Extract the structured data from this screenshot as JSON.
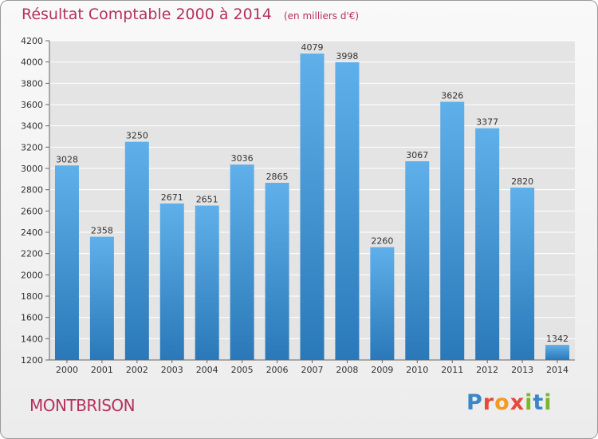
{
  "header": {
    "title": "Résultat Comptable 2000 à 2014",
    "unit": "(en milliers d'€)"
  },
  "footer": {
    "city": "MONTBRISON",
    "logo": "Proxiti"
  },
  "colors": {
    "title": "#b5305e",
    "bar_top": "#5fb0ea",
    "bar_bottom": "#2a78b8",
    "grid": "#ffffff",
    "plot_bg": "#e4e4e4"
  },
  "chart_data": {
    "type": "bar",
    "title": "Résultat Comptable 2000 à 2014",
    "subtitle": "(en milliers d'€)",
    "categories": [
      "2000",
      "2001",
      "2002",
      "2003",
      "2004",
      "2005",
      "2006",
      "2007",
      "2008",
      "2009",
      "2010",
      "2011",
      "2012",
      "2013",
      "2014"
    ],
    "values": [
      3028,
      2358,
      3250,
      2671,
      2651,
      3036,
      2865,
      4079,
      3998,
      2260,
      3067,
      3626,
      3377,
      2820,
      1342
    ],
    "xlabel": "",
    "ylabel": "",
    "ylim": [
      1200,
      4200
    ],
    "yticks": [
      1200,
      1400,
      1600,
      1800,
      2000,
      2200,
      2400,
      2600,
      2800,
      3000,
      3200,
      3400,
      3600,
      3800,
      4000,
      4200
    ],
    "grid": true,
    "legend": "none"
  }
}
